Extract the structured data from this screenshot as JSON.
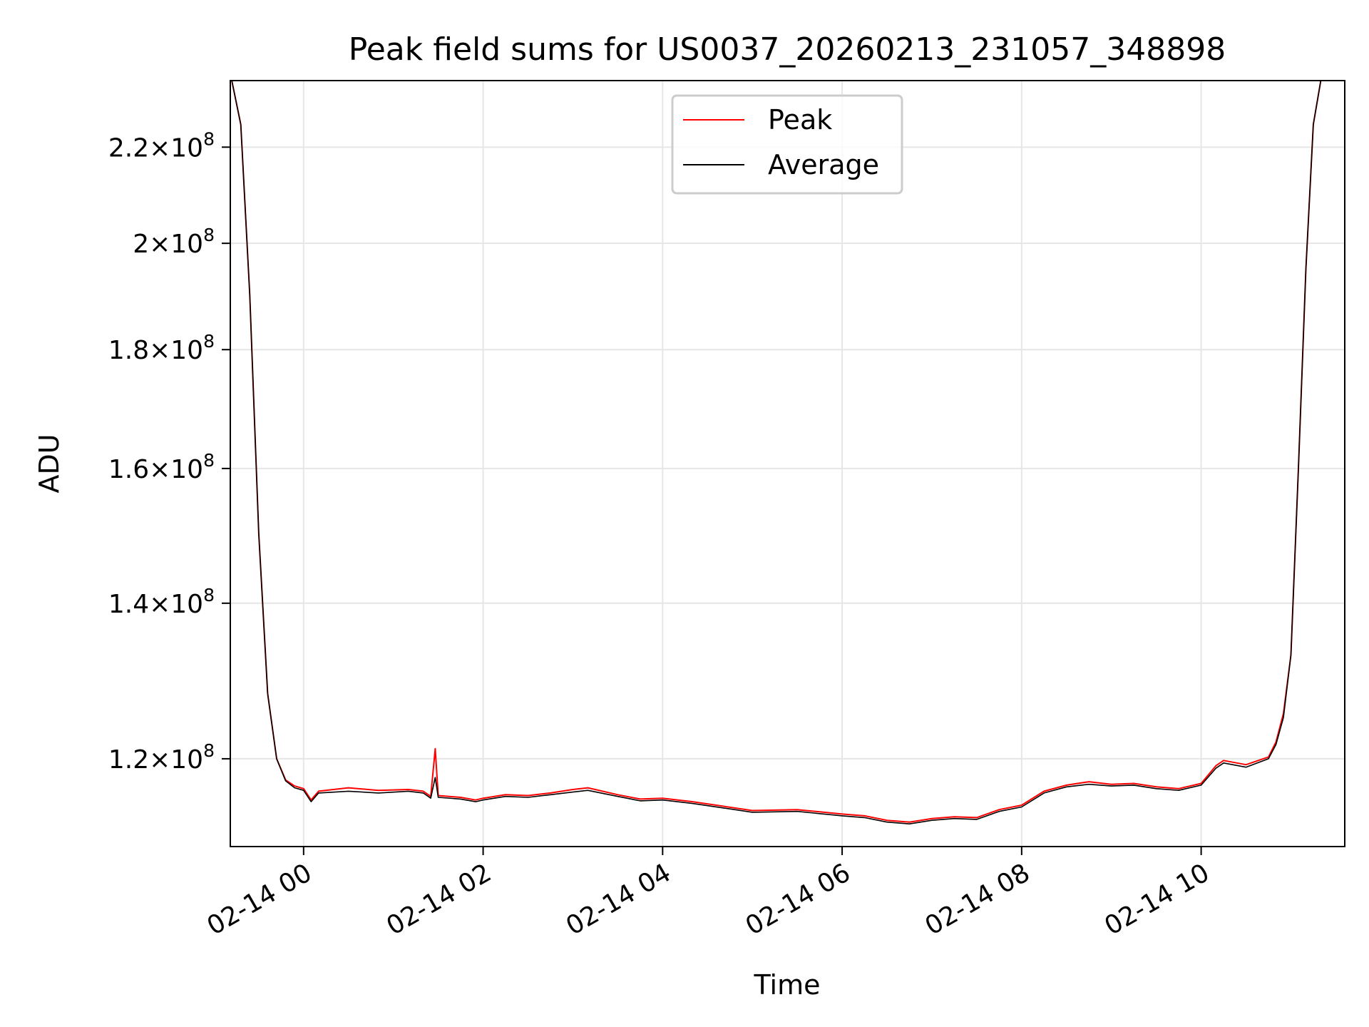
{
  "chart_data": {
    "type": "line",
    "title": "Peak field sums for US0037_20260213_231057_348898",
    "xlabel": "Time",
    "ylabel": "ADU",
    "yscale": "log",
    "xlim": [
      "2026-02-13 23:11",
      "2026-02-14 11:36"
    ],
    "ylim": [
      110000000,
      235000000
    ],
    "x_ticks": [
      {
        "value": "2026-02-14 00:00",
        "label": "02-14 00"
      },
      {
        "value": "2026-02-14 02:00",
        "label": "02-14 02"
      },
      {
        "value": "2026-02-14 04:00",
        "label": "02-14 04"
      },
      {
        "value": "2026-02-14 06:00",
        "label": "02-14 06"
      },
      {
        "value": "2026-02-14 08:00",
        "label": "02-14 08"
      },
      {
        "value": "2026-02-14 10:00",
        "label": "02-14 10"
      }
    ],
    "y_ticks": [
      {
        "value": 120000000,
        "mantissa": "1.2",
        "exponent": "8"
      },
      {
        "value": 140000000,
        "mantissa": "1.4",
        "exponent": "8"
      },
      {
        "value": 160000000,
        "mantissa": "1.6",
        "exponent": "8"
      },
      {
        "value": 180000000,
        "mantissa": "1.8",
        "exponent": "8"
      },
      {
        "value": 200000000,
        "mantissa": "2",
        "exponent": "8"
      },
      {
        "value": 220000000,
        "mantissa": "2.2",
        "exponent": "8"
      }
    ],
    "tick_times_label": "×10",
    "grid": true,
    "legend": {
      "position": "top-center"
    },
    "series": [
      {
        "name": "Peak",
        "color": "#ff0000",
        "points": [
          [
            "2026-02-13 23:12",
            235000000
          ],
          [
            "2026-02-13 23:18",
            225000000
          ],
          [
            "2026-02-13 23:24",
            190000000
          ],
          [
            "2026-02-13 23:30",
            150000000
          ],
          [
            "2026-02-13 23:36",
            128000000
          ],
          [
            "2026-02-13 23:42",
            120000000
          ],
          [
            "2026-02-13 23:48",
            117500000
          ],
          [
            "2026-02-13 23:54",
            116800000
          ],
          [
            "2026-02-14 00:00",
            116500000
          ],
          [
            "2026-02-14 00:05",
            115200000
          ],
          [
            "2026-02-14 00:10",
            116200000
          ],
          [
            "2026-02-14 00:30",
            116600000
          ],
          [
            "2026-02-14 00:50",
            116300000
          ],
          [
            "2026-02-14 01:10",
            116400000
          ],
          [
            "2026-02-14 01:20",
            116200000
          ],
          [
            "2026-02-14 01:25",
            115600000
          ],
          [
            "2026-02-14 01:28",
            121200000
          ],
          [
            "2026-02-14 01:30",
            115700000
          ],
          [
            "2026-02-14 01:45",
            115500000
          ],
          [
            "2026-02-14 01:55",
            115200000
          ],
          [
            "2026-02-14 02:00",
            115400000
          ],
          [
            "2026-02-14 02:15",
            115800000
          ],
          [
            "2026-02-14 02:30",
            115700000
          ],
          [
            "2026-02-14 02:45",
            116000000
          ],
          [
            "2026-02-14 03:00",
            116400000
          ],
          [
            "2026-02-14 03:10",
            116600000
          ],
          [
            "2026-02-14 03:30",
            115800000
          ],
          [
            "2026-02-14 03:45",
            115300000
          ],
          [
            "2026-02-14 04:00",
            115400000
          ],
          [
            "2026-02-14 04:20",
            115000000
          ],
          [
            "2026-02-14 04:40",
            114500000
          ],
          [
            "2026-02-14 05:00",
            114000000
          ],
          [
            "2026-02-14 05:30",
            114100000
          ],
          [
            "2026-02-14 06:00",
            113600000
          ],
          [
            "2026-02-14 06:15",
            113400000
          ],
          [
            "2026-02-14 06:30",
            112900000
          ],
          [
            "2026-02-14 06:45",
            112700000
          ],
          [
            "2026-02-14 07:00",
            113100000
          ],
          [
            "2026-02-14 07:15",
            113300000
          ],
          [
            "2026-02-14 07:30",
            113200000
          ],
          [
            "2026-02-14 07:45",
            114100000
          ],
          [
            "2026-02-14 08:00",
            114600000
          ],
          [
            "2026-02-14 08:15",
            116200000
          ],
          [
            "2026-02-14 08:30",
            116900000
          ],
          [
            "2026-02-14 08:45",
            117300000
          ],
          [
            "2026-02-14 09:00",
            117000000
          ],
          [
            "2026-02-14 09:15",
            117100000
          ],
          [
            "2026-02-14 09:30",
            116700000
          ],
          [
            "2026-02-14 09:45",
            116500000
          ],
          [
            "2026-02-14 10:00",
            117100000
          ],
          [
            "2026-02-14 10:10",
            119200000
          ],
          [
            "2026-02-14 10:15",
            119800000
          ],
          [
            "2026-02-14 10:30",
            119300000
          ],
          [
            "2026-02-14 10:45",
            120200000
          ],
          [
            "2026-02-14 10:50",
            122000000
          ],
          [
            "2026-02-14 10:55",
            125500000
          ],
          [
            "2026-02-14 11:00",
            133000000
          ],
          [
            "2026-02-14 11:05",
            160000000
          ],
          [
            "2026-02-14 11:10",
            195000000
          ],
          [
            "2026-02-14 11:15",
            225000000
          ],
          [
            "2026-02-14 11:20",
            235000000
          ]
        ]
      },
      {
        "name": "Average",
        "color": "#000000",
        "points": [
          [
            "2026-02-13 23:12",
            235000000
          ],
          [
            "2026-02-13 23:18",
            225000000
          ],
          [
            "2026-02-13 23:24",
            190000000
          ],
          [
            "2026-02-13 23:30",
            150000000
          ],
          [
            "2026-02-13 23:36",
            128000000
          ],
          [
            "2026-02-13 23:42",
            120000000
          ],
          [
            "2026-02-13 23:48",
            117400000
          ],
          [
            "2026-02-13 23:54",
            116600000
          ],
          [
            "2026-02-14 00:00",
            116300000
          ],
          [
            "2026-02-14 00:05",
            115000000
          ],
          [
            "2026-02-14 00:10",
            116000000
          ],
          [
            "2026-02-14 00:30",
            116200000
          ],
          [
            "2026-02-14 00:50",
            116000000
          ],
          [
            "2026-02-14 01:10",
            116200000
          ],
          [
            "2026-02-14 01:20",
            116000000
          ],
          [
            "2026-02-14 01:25",
            115400000
          ],
          [
            "2026-02-14 01:28",
            117800000
          ],
          [
            "2026-02-14 01:30",
            115500000
          ],
          [
            "2026-02-14 01:45",
            115300000
          ],
          [
            "2026-02-14 01:55",
            115000000
          ],
          [
            "2026-02-14 02:00",
            115200000
          ],
          [
            "2026-02-14 02:15",
            115600000
          ],
          [
            "2026-02-14 02:30",
            115500000
          ],
          [
            "2026-02-14 02:45",
            115800000
          ],
          [
            "2026-02-14 03:00",
            116100000
          ],
          [
            "2026-02-14 03:10",
            116300000
          ],
          [
            "2026-02-14 03:30",
            115600000
          ],
          [
            "2026-02-14 03:45",
            115100000
          ],
          [
            "2026-02-14 04:00",
            115200000
          ],
          [
            "2026-02-14 04:20",
            114800000
          ],
          [
            "2026-02-14 04:40",
            114300000
          ],
          [
            "2026-02-14 05:00",
            113800000
          ],
          [
            "2026-02-14 05:30",
            113900000
          ],
          [
            "2026-02-14 06:00",
            113400000
          ],
          [
            "2026-02-14 06:15",
            113200000
          ],
          [
            "2026-02-14 06:30",
            112700000
          ],
          [
            "2026-02-14 06:45",
            112500000
          ],
          [
            "2026-02-14 07:00",
            112900000
          ],
          [
            "2026-02-14 07:15",
            113100000
          ],
          [
            "2026-02-14 07:30",
            113000000
          ],
          [
            "2026-02-14 07:45",
            113900000
          ],
          [
            "2026-02-14 08:00",
            114400000
          ],
          [
            "2026-02-14 08:15",
            116000000
          ],
          [
            "2026-02-14 08:30",
            116700000
          ],
          [
            "2026-02-14 08:45",
            117000000
          ],
          [
            "2026-02-14 09:00",
            116800000
          ],
          [
            "2026-02-14 09:15",
            116900000
          ],
          [
            "2026-02-14 09:30",
            116500000
          ],
          [
            "2026-02-14 09:45",
            116300000
          ],
          [
            "2026-02-14 10:00",
            116900000
          ],
          [
            "2026-02-14 10:10",
            118900000
          ],
          [
            "2026-02-14 10:15",
            119500000
          ],
          [
            "2026-02-14 10:30",
            119000000
          ],
          [
            "2026-02-14 10:45",
            120000000
          ],
          [
            "2026-02-14 10:50",
            121700000
          ],
          [
            "2026-02-14 10:55",
            125000000
          ],
          [
            "2026-02-14 11:00",
            133000000
          ],
          [
            "2026-02-14 11:05",
            160000000
          ],
          [
            "2026-02-14 11:10",
            195000000
          ],
          [
            "2026-02-14 11:15",
            225000000
          ],
          [
            "2026-02-14 11:20",
            235000000
          ]
        ]
      }
    ]
  }
}
